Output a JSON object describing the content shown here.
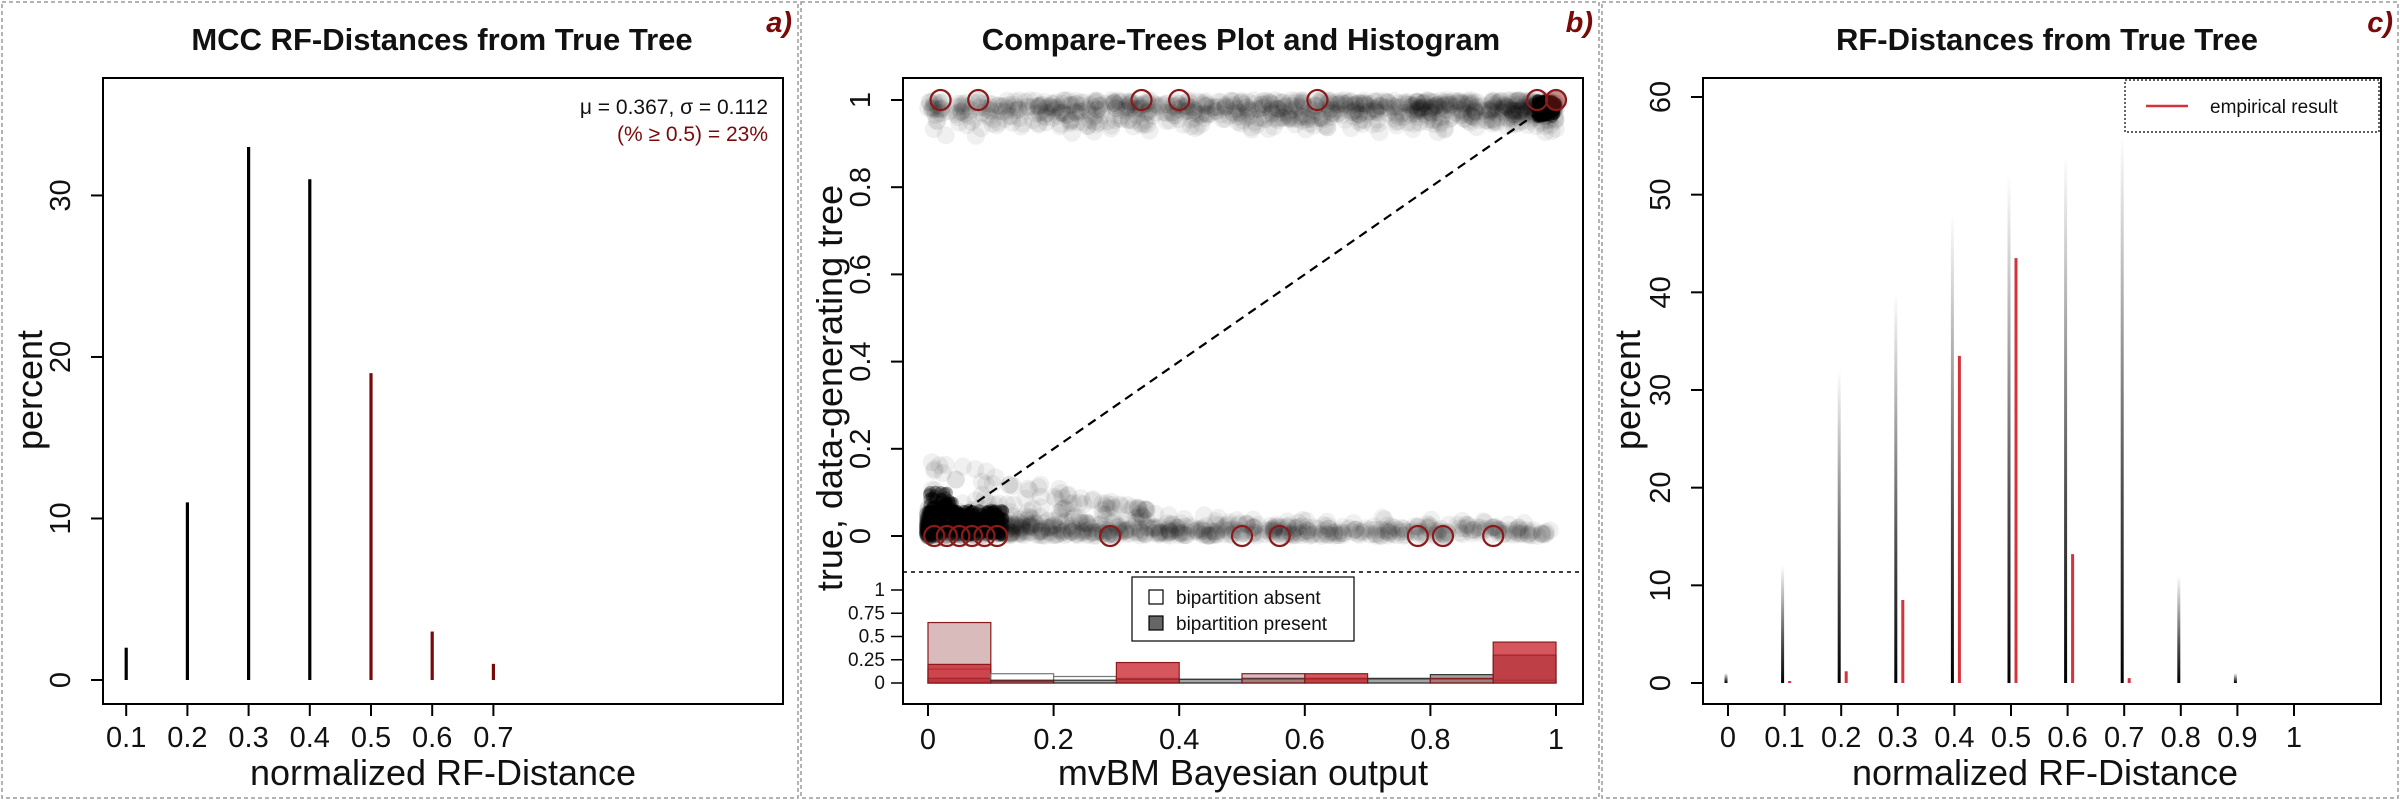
{
  "panels": {
    "a": {
      "title": "MCC RF-Distances from True Tree",
      "label": "a)",
      "stat_line1": "μ = 0.367, σ = 0.112",
      "stat_line2": "(% ≥ 0.5) = 23%"
    },
    "b": {
      "title": "Compare-Trees Plot and Histogram",
      "label": "b)",
      "legend": [
        "bipartition absent",
        "bipartition present"
      ]
    },
    "c": {
      "title": "RF-Distances from True Tree",
      "label": "c)",
      "legend": [
        "empirical result"
      ]
    }
  },
  "colors": {
    "label": "#7a0a0a",
    "dark_red": "#7a0a0a",
    "red": "#d6323c",
    "black": "#000000"
  },
  "chart_data": [
    {
      "type": "bar",
      "title": "MCC RF-Distances from True Tree",
      "xlabel": "normalized RF-Distance",
      "ylabel": "percent",
      "x": [
        0.1,
        0.2,
        0.3,
        0.4,
        0.5,
        0.6,
        0.7
      ],
      "values": [
        2,
        11,
        33,
        31,
        19,
        3,
        1
      ],
      "highlight_from": 0.5,
      "xticks": [
        "0.1",
        "0.2",
        "0.3",
        "0.4",
        "0.5",
        "0.6",
        "0.7"
      ],
      "yticks": [
        0,
        10,
        20,
        30
      ],
      "xlim": [
        0,
        1
      ],
      "ylim": [
        0,
        37
      ]
    },
    {
      "type": "scatter",
      "title": "Compare-Trees Plot and Histogram",
      "xlabel": "mvBM Bayesian output",
      "ylabel": "true, data-generating tree",
      "xticks": [
        "0",
        "0.2",
        "0.4",
        "0.6",
        "0.8",
        "1"
      ],
      "yticks": [
        "0",
        "0.2",
        "0.4",
        "0.6",
        "0.8",
        "1"
      ],
      "xlim": [
        0,
        1
      ],
      "ylim": [
        0,
        1
      ],
      "reference_line": [
        [
          0,
          0
        ],
        [
          1,
          1
        ]
      ],
      "highlighted_points_absent": [
        0.01,
        0.03,
        0.05,
        0.07,
        0.09,
        0.11,
        0.29,
        0.5,
        0.56,
        0.78,
        0.82,
        0.9
      ],
      "highlighted_points_present": [
        0.02,
        0.08,
        0.34,
        0.4,
        0.62,
        0.97,
        1.0
      ],
      "histogram": {
        "yticks": [
          "0",
          "0.25",
          "0.5",
          "0.75",
          "1"
        ],
        "bins": [
          0.05,
          0.15,
          0.25,
          0.35,
          0.45,
          0.55,
          0.65,
          0.75,
          0.85,
          0.95
        ],
        "absent_all": [
          0.15,
          0.1,
          0.07,
          0.05,
          0.04,
          0.04,
          0.04,
          0.04,
          0.04,
          0.03
        ],
        "present_all": [
          0.05,
          0.03,
          0.03,
          0.04,
          0.04,
          0.05,
          0.05,
          0.05,
          0.09,
          0.3
        ],
        "absent_mcc": [
          0.65,
          0.02,
          0.0,
          0.0,
          0.0,
          0.1,
          0.0,
          0.0,
          0.05,
          0.0
        ],
        "present_mcc": [
          0.2,
          0.0,
          0.0,
          0.22,
          0.0,
          0.0,
          0.1,
          0.0,
          0.0,
          0.44
        ]
      }
    },
    {
      "type": "bar",
      "title": "RF-Distances from True Tree",
      "xlabel": "normalized RF-Distance",
      "ylabel": "percent",
      "xticks": [
        "0",
        "0.1",
        "0.2",
        "0.3",
        "0.4",
        "0.5",
        "0.6",
        "0.7",
        "0.8",
        "0.9",
        "1"
      ],
      "yticks": [
        0,
        10,
        20,
        30,
        40,
        50,
        60
      ],
      "xlim": [
        0,
        1
      ],
      "ylim": [
        0,
        62
      ],
      "series": [
        {
          "name": "empirical result",
          "x": [
            0.1,
            0.2,
            0.3,
            0.4,
            0.5,
            0.6,
            0.7
          ],
          "values": [
            0.2,
            1.2,
            8.5,
            33.5,
            43.5,
            13.2,
            0.5
          ]
        }
      ],
      "simulated_max": [
        1,
        12,
        32,
        40,
        48,
        52,
        54,
        56,
        11,
        1,
        0
      ]
    }
  ]
}
